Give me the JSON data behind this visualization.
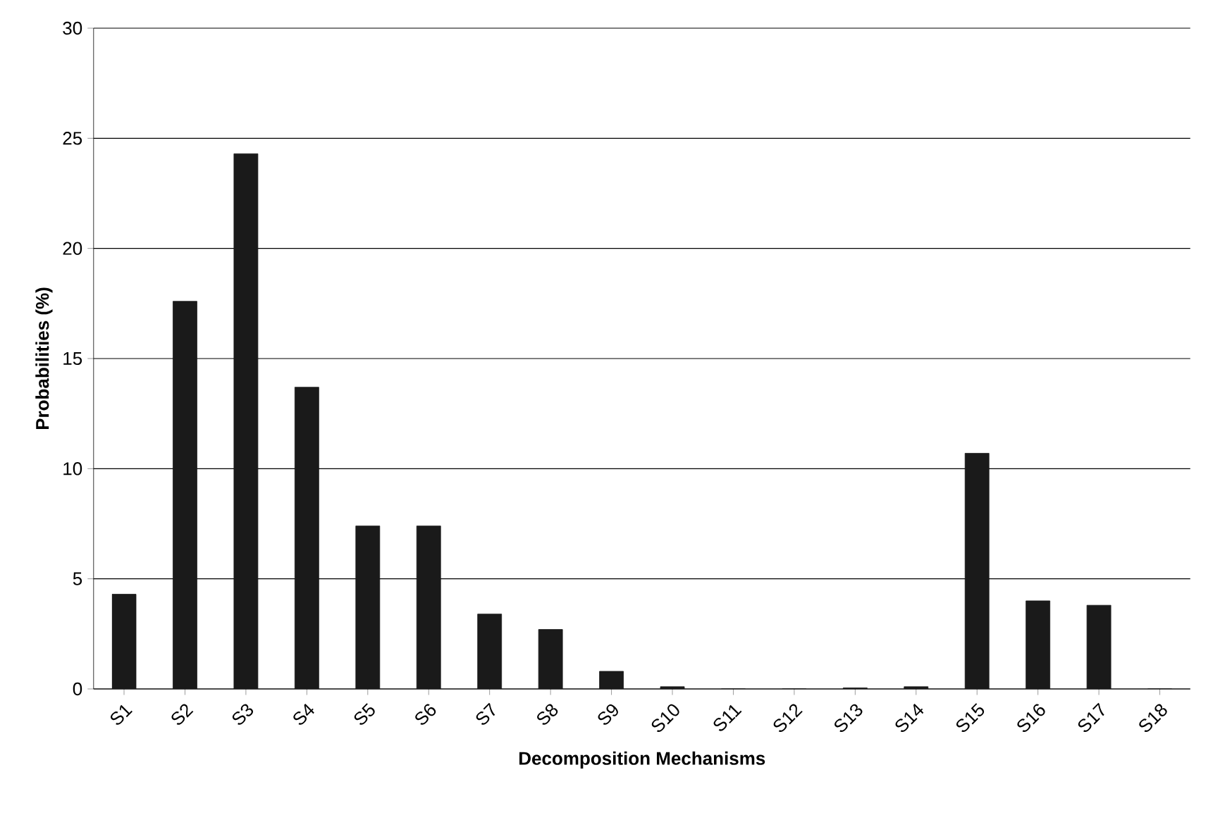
{
  "chart_data": {
    "type": "bar",
    "xlabel": "Decomposition Mechanisms",
    "ylabel": "Probabilities (%)",
    "categories": [
      "S1",
      "S2",
      "S3",
      "S4",
      "S5",
      "S6",
      "S7",
      "S8",
      "S9",
      "S10",
      "S11",
      "S12",
      "S13",
      "S14",
      "S15",
      "S16",
      "S17",
      "S18"
    ],
    "values": [
      4.3,
      17.6,
      24.3,
      13.7,
      7.4,
      7.4,
      3.4,
      2.7,
      0.8,
      0.1,
      0,
      0,
      0.05,
      0.1,
      10.7,
      4.0,
      3.8,
      0
    ],
    "color": "#1a1a1a",
    "ylim": [
      0,
      30
    ],
    "yticks": [
      0,
      5,
      10,
      15,
      20,
      25,
      30
    ],
    "grid": "y"
  }
}
